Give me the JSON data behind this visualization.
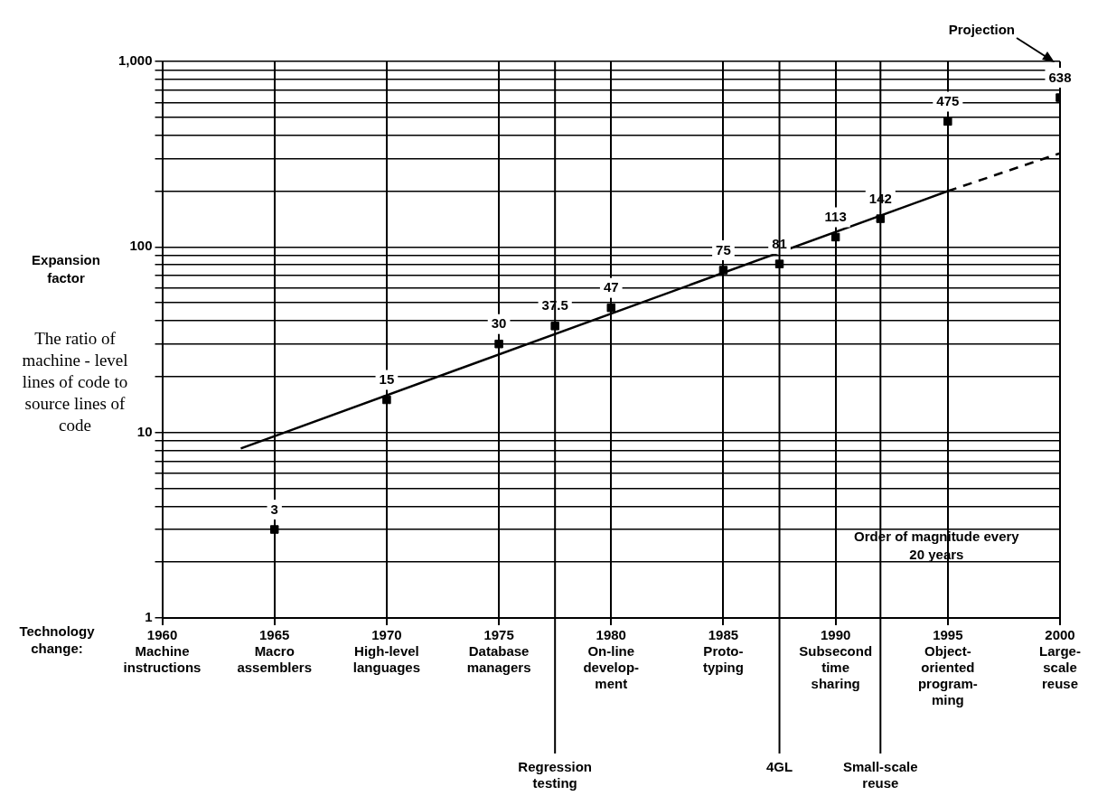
{
  "chart_data": {
    "type": "scatter",
    "ylabel": "Expansion factor",
    "log": "y",
    "grid": true,
    "legend": false,
    "xlim": [
      1960,
      2000
    ],
    "xticks": [
      {
        "value": 1960,
        "label": "1960\nMachine\ninstructions"
      },
      {
        "value": 1965,
        "label": "1965\nMacro\nassemblers"
      },
      {
        "value": 1970,
        "label": "1970\nHigh-level\nlanguages"
      },
      {
        "value": 1975,
        "label": "1975\nDatabase\nmanagers"
      },
      {
        "value": 1980,
        "label": "1980\nOn-line\ndevelop-\nment"
      },
      {
        "value": 1985,
        "label": "1985\nProto-\ntyping"
      },
      {
        "value": 1990,
        "label": "1990\nSubsecond\ntime\nsharing"
      },
      {
        "value": 1995,
        "label": "1995\nObject-\noriented\nprogram-\nming"
      },
      {
        "value": 2000,
        "label": "2000\nLarge-\nscale\nreuse"
      }
    ],
    "ylim": [
      1,
      1000
    ],
    "yticks": [
      1,
      {
        "value": 2,
        "label": null
      },
      {
        "value": 3,
        "label": null
      },
      {
        "value": 4,
        "label": null
      },
      {
        "value": 5,
        "label": null
      },
      {
        "value": 6,
        "label": null
      },
      {
        "value": 7,
        "label": null
      },
      {
        "value": 8,
        "label": null
      },
      {
        "value": 9,
        "label": null
      },
      10,
      {
        "value": 20,
        "label": null
      },
      {
        "value": 30,
        "label": null
      },
      {
        "value": 40,
        "label": null
      },
      {
        "value": 50,
        "label": null
      },
      {
        "value": 60,
        "label": null
      },
      {
        "value": 70,
        "label": null
      },
      {
        "value": 80,
        "label": null
      },
      {
        "value": 90,
        "label": null
      },
      100,
      {
        "value": 200,
        "label": null
      },
      {
        "value": 300,
        "label": null
      },
      {
        "value": 400,
        "label": null
      },
      {
        "value": 500,
        "label": null
      },
      {
        "value": 600,
        "label": null
      },
      {
        "value": 700,
        "label": null
      },
      {
        "value": 800,
        "label": null
      },
      {
        "value": 900,
        "label": null
      },
      {
        "value": 1000,
        "label": "1,000"
      }
    ],
    "series": [
      {
        "type": "scatter",
        "marker": "square",
        "color": "#000000",
        "x": [
          1965,
          1970,
          1975,
          1977.5,
          1980,
          1985,
          1987.5,
          1990,
          1992,
          1995,
          2000
        ],
        "values": [
          3,
          15,
          30,
          37.5,
          47,
          75,
          81,
          113,
          142,
          475,
          638
        ],
        "value_labels": [
          "3",
          "15",
          "30",
          "37.5",
          "47",
          "75",
          "81",
          "113",
          "142",
          "475",
          "638"
        ]
      },
      {
        "type": "line",
        "line_style": "solid",
        "color": "#000000",
        "x": [
          1963.5,
          1995
        ],
        "values": [
          8.2,
          200
        ]
      },
      {
        "type": "line",
        "line_style": "dashed",
        "color": "#000000",
        "x": [
          1995,
          2000
        ],
        "values": [
          200,
          320
        ]
      }
    ],
    "ref_lines": [
      {
        "axis": "x",
        "value": 1977.5,
        "label": "Regression testing"
      },
      {
        "axis": "x",
        "value": 1987.5,
        "label": "4GL"
      },
      {
        "axis": "x",
        "value": 1992,
        "label": "Small-scale reuse"
      }
    ],
    "annotations": [
      "Projection",
      "Order of magnitude every 20 years",
      "The ratio of machine - level lines of code to source lines of code",
      "Technology change:"
    ]
  }
}
